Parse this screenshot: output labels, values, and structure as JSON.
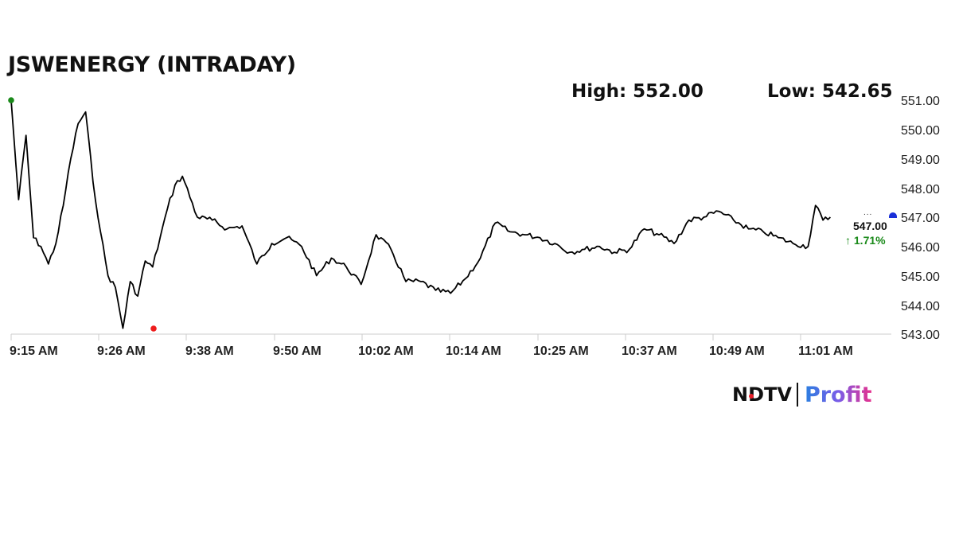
{
  "header": {
    "title": "JSWENERGY (INTRADAY)",
    "high_label": "High: 552.00",
    "low_label": "Low: 542.65"
  },
  "last": {
    "price": "547.00",
    "change": "↑ 1.71%",
    "change_color": "#1a8a1a",
    "dots": "..."
  },
  "brand": {
    "ndtv": "NDTV",
    "profit": "Profit"
  },
  "colors": {
    "line": "#000000",
    "start_marker": "#1a8a1a",
    "low_marker": "#ee1c1c",
    "end_marker": "#1a2fd8",
    "grid": "#dddddd"
  },
  "chart_data": {
    "type": "line",
    "title": "JSWENERGY (INTRADAY)",
    "xlabel": "",
    "ylabel": "",
    "ylim": [
      543.0,
      551.0
    ],
    "yticks": [
      "551.00",
      "550.00",
      "549.00",
      "548.00",
      "547.00",
      "546.00",
      "545.00",
      "544.00",
      "543.00"
    ],
    "xticks": [
      "9:15 AM",
      "9:26 AM",
      "9:38 AM",
      "9:50 AM",
      "10:02 AM",
      "10:14 AM",
      "10:25 AM",
      "10:37 AM",
      "10:49 AM",
      "11:01 AM"
    ],
    "grid": false,
    "legend": "none",
    "annotations": [
      "High: 552.00",
      "Low: 542.65",
      "547.00",
      "↑ 1.71%"
    ],
    "series": [
      {
        "name": "JSWENERGY",
        "x": [
          "9:15",
          "9:16",
          "9:17",
          "9:18",
          "9:19",
          "9:20",
          "9:21",
          "9:22",
          "9:23",
          "9:24",
          "9:25",
          "9:26",
          "9:27",
          "9:28",
          "9:29",
          "9:30",
          "9:31",
          "9:32",
          "9:33",
          "9:34",
          "9:35",
          "9:36",
          "9:37",
          "9:38",
          "9:40",
          "9:42",
          "9:44",
          "9:46",
          "9:48",
          "9:50",
          "9:52",
          "9:54",
          "9:56",
          "9:58",
          "10:00",
          "10:02",
          "10:04",
          "10:06",
          "10:08",
          "10:10",
          "10:12",
          "10:14",
          "10:16",
          "10:18",
          "10:20",
          "10:22",
          "10:24",
          "10:26",
          "10:28",
          "10:30",
          "10:32",
          "10:34",
          "10:36",
          "10:38",
          "10:40",
          "10:42",
          "10:44",
          "10:46",
          "10:48",
          "10:50",
          "10:52",
          "10:54",
          "10:56",
          "10:58",
          "11:00",
          "11:02",
          "11:03",
          "11:04",
          "11:05"
        ],
        "values": [
          551.0,
          547.6,
          549.8,
          546.3,
          546.0,
          545.4,
          546.1,
          547.4,
          549.0,
          550.2,
          550.6,
          548.2,
          546.5,
          545.0,
          544.6,
          543.2,
          544.8,
          544.3,
          545.5,
          545.3,
          546.3,
          547.3,
          548.1,
          548.4,
          547.0,
          546.9,
          546.6,
          546.7,
          545.4,
          546.1,
          546.3,
          546.0,
          545.0,
          545.6,
          545.3,
          544.7,
          546.4,
          545.9,
          544.8,
          544.8,
          544.5,
          544.4,
          544.9,
          545.6,
          546.8,
          546.5,
          546.4,
          546.3,
          546.1,
          545.8,
          545.9,
          546.0,
          545.8,
          545.9,
          546.6,
          546.4,
          546.1,
          546.9,
          547.0,
          547.2,
          546.9,
          546.6,
          546.5,
          546.3,
          546.1,
          546.0,
          547.4,
          546.9,
          547.0
        ]
      }
    ],
    "markers": [
      {
        "label": "open",
        "time": "9:15",
        "value": 551.0,
        "color": "green"
      },
      {
        "label": "day-low",
        "time": "9:30",
        "value": 543.2,
        "color": "red"
      },
      {
        "label": "last",
        "time": "11:05",
        "value": 547.0,
        "color": "blue"
      }
    ]
  }
}
